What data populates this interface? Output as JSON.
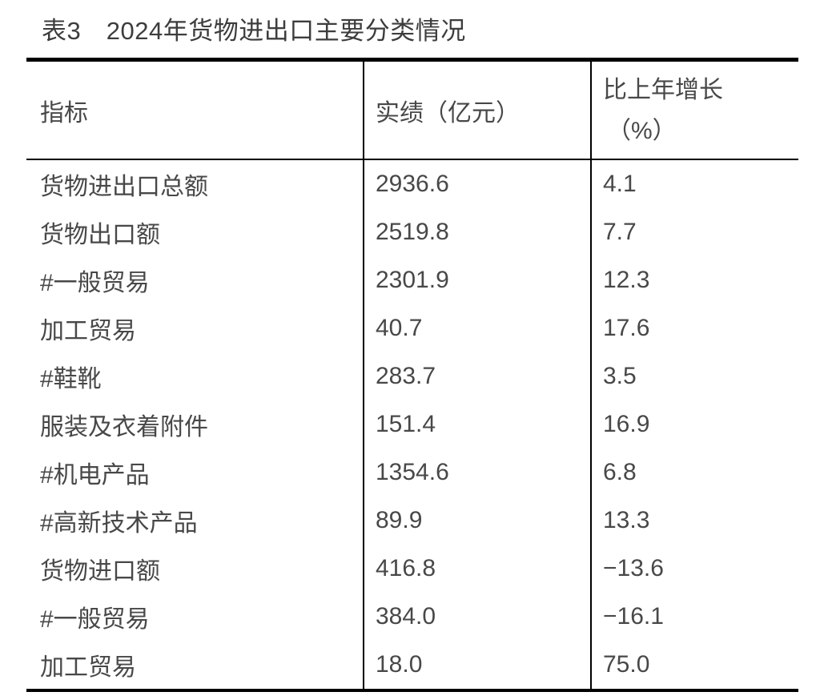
{
  "title": "表3　2024年货物进出口主要分类情况",
  "colors": {
    "background": "#ffffff",
    "text": "#484848",
    "border": "#000000"
  },
  "table": {
    "header": {
      "indicator": "指标",
      "value": "实绩（亿元）",
      "growth_line1": "比上年增长",
      "growth_line2": "（%）"
    },
    "rows": [
      {
        "indicator": "货物进出口总额",
        "value": "2936.6",
        "growth": "4.1"
      },
      {
        "indicator": "货物出口额",
        "value": "2519.8",
        "growth": "7.7"
      },
      {
        "indicator": "#一般贸易",
        "value": "2301.9",
        "growth": "12.3"
      },
      {
        "indicator": "加工贸易",
        "value": "40.7",
        "growth": "17.6"
      },
      {
        "indicator": "#鞋靴",
        "value": "283.7",
        "growth": "3.5"
      },
      {
        "indicator": "服装及衣着附件",
        "value": "151.4",
        "growth": "16.9"
      },
      {
        "indicator": "#机电产品",
        "value": "1354.6",
        "growth": "6.8"
      },
      {
        "indicator": "#高新技术产品",
        "value": "89.9",
        "growth": "13.3"
      },
      {
        "indicator": "货物进口额",
        "value": "416.8",
        "growth": "−13.6"
      },
      {
        "indicator": "#一般贸易",
        "value": "384.0",
        "growth": "−16.1"
      },
      {
        "indicator": "加工贸易",
        "value": "18.0",
        "growth": "75.0"
      }
    ]
  }
}
